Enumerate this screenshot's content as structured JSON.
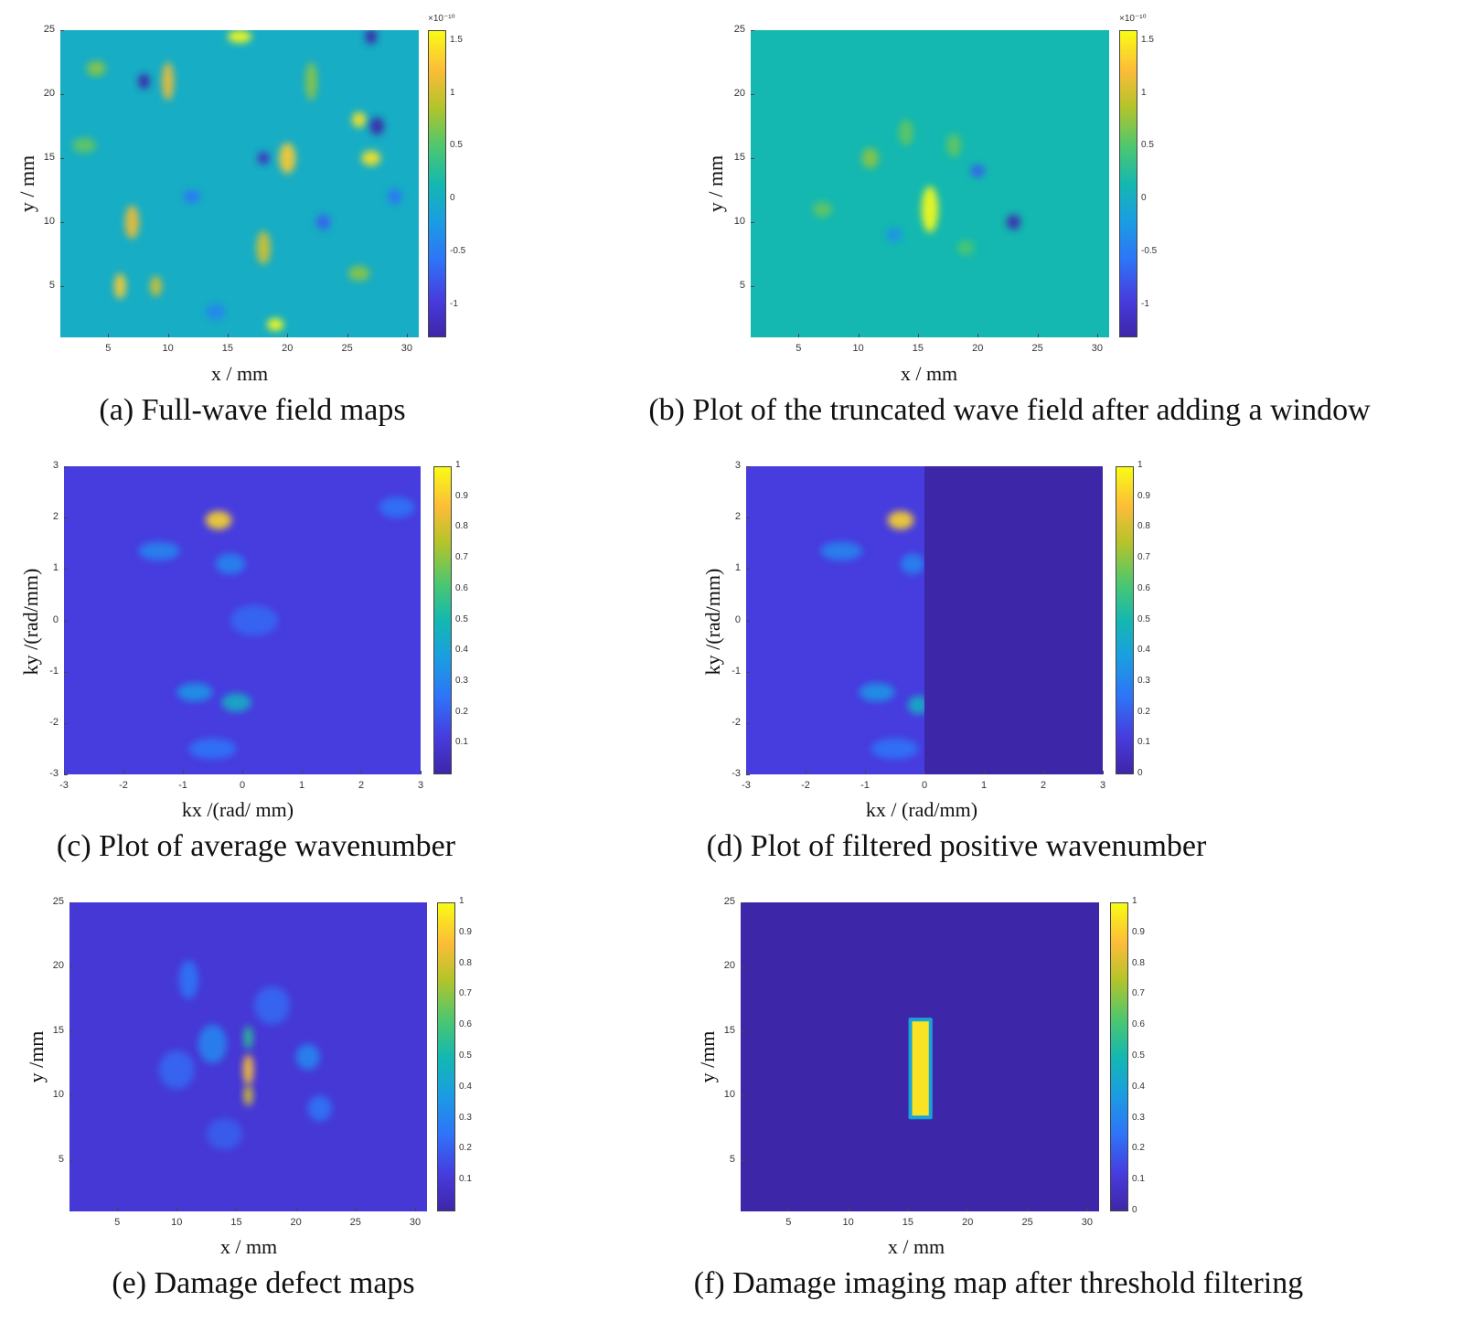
{
  "colors": {
    "parula_low": "#3e26a8",
    "parula_mid": "#14b8b0",
    "parula_high": "#f9fb15",
    "background": "#ffffff"
  },
  "chart_data": [
    {
      "id": "a",
      "type": "heatmap",
      "caption": "(a) Full-wave field maps",
      "xlabel": "x / mm",
      "ylabel": "y / mm",
      "xlim": [
        1,
        31
      ],
      "ylim": [
        1,
        25
      ],
      "xticks": [
        "5",
        "10",
        "15",
        "20",
        "25",
        "30"
      ],
      "yticks": [
        "5",
        "10",
        "15",
        "20",
        "25"
      ],
      "colorbar": {
        "min": -1.3,
        "max": 1.6,
        "exponent": "×10⁻¹⁰",
        "ticks": [
          "-1",
          "-0.5",
          "0",
          "0.5",
          "1",
          "1.5"
        ]
      },
      "background_level": 0.45,
      "blobs": [
        {
          "x": 16,
          "y": 24.5,
          "v": 1.0,
          "sx": 1.0,
          "sy": 0.5
        },
        {
          "x": 27,
          "y": 24.5,
          "v": 0.0,
          "sx": 0.5,
          "sy": 0.6
        },
        {
          "x": 8,
          "y": 21,
          "v": 0.0,
          "sx": 0.5,
          "sy": 0.6
        },
        {
          "x": 10,
          "y": 21,
          "v": 0.85,
          "sx": 0.5,
          "sy": 1.5
        },
        {
          "x": 26,
          "y": 18,
          "v": 0.95,
          "sx": 0.6,
          "sy": 0.6
        },
        {
          "x": 27.5,
          "y": 17.5,
          "v": 0.0,
          "sx": 0.6,
          "sy": 0.7
        },
        {
          "x": 27,
          "y": 15,
          "v": 0.95,
          "sx": 0.8,
          "sy": 0.6
        },
        {
          "x": 18,
          "y": 15,
          "v": 0.05,
          "sx": 0.5,
          "sy": 0.5
        },
        {
          "x": 20,
          "y": 15,
          "v": 0.9,
          "sx": 0.7,
          "sy": 1.2
        },
        {
          "x": 7,
          "y": 10,
          "v": 0.85,
          "sx": 0.6,
          "sy": 1.3
        },
        {
          "x": 23,
          "y": 10,
          "v": 0.2,
          "sx": 0.6,
          "sy": 0.6
        },
        {
          "x": 18,
          "y": 8,
          "v": 0.8,
          "sx": 0.6,
          "sy": 1.3
        },
        {
          "x": 6,
          "y": 5,
          "v": 0.9,
          "sx": 0.5,
          "sy": 1.0
        },
        {
          "x": 9,
          "y": 5,
          "v": 0.8,
          "sx": 0.5,
          "sy": 0.8
        },
        {
          "x": 12,
          "y": 12,
          "v": 0.25,
          "sx": 0.7,
          "sy": 0.5
        },
        {
          "x": 3,
          "y": 16,
          "v": 0.65,
          "sx": 1.0,
          "sy": 0.6
        },
        {
          "x": 22,
          "y": 21,
          "v": 0.7,
          "sx": 0.5,
          "sy": 1.5
        },
        {
          "x": 14,
          "y": 3,
          "v": 0.3,
          "sx": 0.8,
          "sy": 0.6
        },
        {
          "x": 19,
          "y": 2,
          "v": 1.0,
          "sx": 0.7,
          "sy": 0.5
        },
        {
          "x": 26,
          "y": 6,
          "v": 0.7,
          "sx": 0.9,
          "sy": 0.6
        },
        {
          "x": 29,
          "y": 12,
          "v": 0.25,
          "sx": 0.6,
          "sy": 0.6
        },
        {
          "x": 4,
          "y": 22,
          "v": 0.7,
          "sx": 0.8,
          "sy": 0.6
        }
      ]
    },
    {
      "id": "b",
      "type": "heatmap",
      "caption": "(b) Plot of the truncated wave field after adding a window",
      "xlabel": "x / mm",
      "ylabel": "y / mm",
      "xlim": [
        1,
        31
      ],
      "ylim": [
        1,
        25
      ],
      "xticks": [
        "5",
        "10",
        "15",
        "20",
        "25",
        "30"
      ],
      "yticks": [
        "5",
        "10",
        "15",
        "20",
        "25"
      ],
      "colorbar": {
        "min": -1.3,
        "max": 1.6,
        "exponent": "×10⁻¹⁰",
        "ticks": [
          "-1",
          "-0.5",
          "0",
          "0.5",
          "1",
          "1.5"
        ]
      },
      "background_level": 0.5,
      "blobs": [
        {
          "x": 16,
          "y": 11,
          "v": 1.0,
          "sx": 0.7,
          "sy": 1.8
        },
        {
          "x": 23,
          "y": 10,
          "v": 0.02,
          "sx": 0.6,
          "sy": 0.6
        },
        {
          "x": 20,
          "y": 14,
          "v": 0.2,
          "sx": 0.6,
          "sy": 0.5
        },
        {
          "x": 11,
          "y": 15,
          "v": 0.7,
          "sx": 0.7,
          "sy": 0.8
        },
        {
          "x": 14,
          "y": 17,
          "v": 0.65,
          "sx": 0.6,
          "sy": 1.0
        },
        {
          "x": 18,
          "y": 16,
          "v": 0.65,
          "sx": 0.6,
          "sy": 0.9
        },
        {
          "x": 7,
          "y": 11,
          "v": 0.65,
          "sx": 0.8,
          "sy": 0.6
        },
        {
          "x": 13,
          "y": 9,
          "v": 0.35,
          "sx": 0.7,
          "sy": 0.6
        },
        {
          "x": 19,
          "y": 8,
          "v": 0.62,
          "sx": 0.7,
          "sy": 0.6
        }
      ]
    },
    {
      "id": "c",
      "type": "heatmap",
      "caption": "(c) Plot of average wavenumber",
      "xlabel": "kx /(rad/ mm)",
      "ylabel": "ky /(rad/mm)",
      "xlim": [
        -3,
        3
      ],
      "ylim": [
        -3,
        3
      ],
      "xticks": [
        "-3",
        "-2",
        "-1",
        "0",
        "1",
        "2",
        "3"
      ],
      "yticks": [
        "-3",
        "-2",
        "-1",
        "0",
        "1",
        "2",
        "3"
      ],
      "colorbar": {
        "min": 0,
        "max": 1,
        "exponent": "",
        "ticks": [
          "0.1",
          "0.2",
          "0.3",
          "0.4",
          "0.5",
          "0.6",
          "0.7",
          "0.8",
          "0.9",
          "1"
        ]
      },
      "background_level": 0.12,
      "blobs": [
        {
          "x": -0.4,
          "y": 1.95,
          "v": 0.92,
          "sx": 0.22,
          "sy": 0.18
        },
        {
          "x": -0.1,
          "y": -1.6,
          "v": 0.45,
          "sx": 0.25,
          "sy": 0.18
        },
        {
          "x": -0.8,
          "y": -1.4,
          "v": 0.35,
          "sx": 0.3,
          "sy": 0.18
        },
        {
          "x": -1.4,
          "y": 1.35,
          "v": 0.3,
          "sx": 0.35,
          "sy": 0.18
        },
        {
          "x": -0.2,
          "y": 1.1,
          "v": 0.3,
          "sx": 0.25,
          "sy": 0.2
        },
        {
          "x": 2.6,
          "y": 2.2,
          "v": 0.25,
          "sx": 0.3,
          "sy": 0.2
        },
        {
          "x": -0.5,
          "y": -2.5,
          "v": 0.25,
          "sx": 0.4,
          "sy": 0.2
        },
        {
          "x": 0.2,
          "y": 0.0,
          "v": 0.22,
          "sx": 0.4,
          "sy": 0.3
        }
      ]
    },
    {
      "id": "d",
      "type": "heatmap",
      "caption": "(d) Plot of filtered positive wavenumber",
      "xlabel": "kx / (rad/mm)",
      "ylabel": "ky /(rad/mm)",
      "xlim": [
        -3,
        3
      ],
      "ylim": [
        -3,
        3
      ],
      "xticks": [
        "-3",
        "-2",
        "-1",
        "0",
        "1",
        "2",
        "3"
      ],
      "yticks": [
        "-3",
        "-2",
        "-1",
        "0",
        "1",
        "2",
        "3"
      ],
      "colorbar": {
        "min": 0,
        "max": 1,
        "exponent": "",
        "ticks": [
          "0",
          "0.1",
          "0.2",
          "0.3",
          "0.4",
          "0.5",
          "0.6",
          "0.7",
          "0.8",
          "0.9",
          "1"
        ]
      },
      "background_level": 0.12,
      "zero_region_x_min": 0,
      "blobs": [
        {
          "x": -0.4,
          "y": 1.95,
          "v": 0.92,
          "sx": 0.22,
          "sy": 0.18
        },
        {
          "x": -0.1,
          "y": -1.65,
          "v": 0.45,
          "sx": 0.18,
          "sy": 0.18
        },
        {
          "x": -0.8,
          "y": -1.4,
          "v": 0.35,
          "sx": 0.3,
          "sy": 0.18
        },
        {
          "x": -1.4,
          "y": 1.35,
          "v": 0.3,
          "sx": 0.35,
          "sy": 0.18
        },
        {
          "x": -0.2,
          "y": 1.1,
          "v": 0.3,
          "sx": 0.2,
          "sy": 0.2
        },
        {
          "x": -0.5,
          "y": -2.5,
          "v": 0.25,
          "sx": 0.4,
          "sy": 0.2
        }
      ]
    },
    {
      "id": "e",
      "type": "heatmap",
      "caption": "(e) Damage defect maps",
      "xlabel": "x / mm",
      "ylabel": "y /mm",
      "xlim": [
        1,
        31
      ],
      "ylim": [
        1,
        25
      ],
      "xticks": [
        "5",
        "10",
        "15",
        "20",
        "25",
        "30"
      ],
      "yticks": [
        "5",
        "10",
        "15",
        "20",
        "25"
      ],
      "colorbar": {
        "min": 0,
        "max": 1,
        "exponent": "",
        "ticks": [
          "0.1",
          "0.2",
          "0.3",
          "0.4",
          "0.5",
          "0.6",
          "0.7",
          "0.8",
          "0.9",
          "1"
        ]
      },
      "background_level": 0.1,
      "blobs": [
        {
          "x": 16,
          "y": 12,
          "v": 0.88,
          "sx": 0.45,
          "sy": 1.2
        },
        {
          "x": 16,
          "y": 10,
          "v": 0.8,
          "sx": 0.4,
          "sy": 0.8
        },
        {
          "x": 16,
          "y": 14.5,
          "v": 0.55,
          "sx": 0.4,
          "sy": 0.9
        },
        {
          "x": 21,
          "y": 13,
          "v": 0.3,
          "sx": 1.0,
          "sy": 1.0
        },
        {
          "x": 13,
          "y": 14,
          "v": 0.3,
          "sx": 1.2,
          "sy": 1.5
        },
        {
          "x": 10,
          "y": 12,
          "v": 0.22,
          "sx": 1.5,
          "sy": 1.5
        },
        {
          "x": 11,
          "y": 19,
          "v": 0.25,
          "sx": 0.8,
          "sy": 1.5
        },
        {
          "x": 18,
          "y": 17,
          "v": 0.22,
          "sx": 1.5,
          "sy": 1.5
        },
        {
          "x": 22,
          "y": 9,
          "v": 0.25,
          "sx": 1.0,
          "sy": 1.0
        },
        {
          "x": 14,
          "y": 7,
          "v": 0.2,
          "sx": 1.5,
          "sy": 1.2
        }
      ]
    },
    {
      "id": "f",
      "type": "heatmap",
      "caption": "(f) Damage imaging map after threshold filtering",
      "xlabel": "x / mm",
      "ylabel": "y /mm",
      "xlim": [
        1,
        31
      ],
      "ylim": [
        1,
        25
      ],
      "xticks": [
        "5",
        "10",
        "15",
        "20",
        "25",
        "30"
      ],
      "yticks": [
        "5",
        "10",
        "15",
        "20",
        "25"
      ],
      "colorbar": {
        "min": 0,
        "max": 1,
        "exponent": "",
        "ticks": [
          "0",
          "0.1",
          "0.2",
          "0.3",
          "0.4",
          "0.5",
          "0.6",
          "0.7",
          "0.8",
          "0.9",
          "1"
        ]
      },
      "background_level": 0.0,
      "defect_region": {
        "x0": 15.2,
        "x1": 16.9,
        "y0": 8.3,
        "y1": 15.9,
        "v": 0.95
      }
    }
  ]
}
